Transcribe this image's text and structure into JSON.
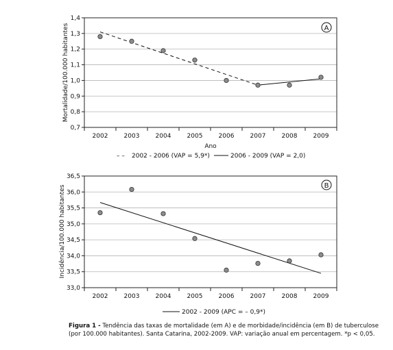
{
  "chart_data": [
    {
      "type": "line",
      "panel_label": "A",
      "ylabel": "Mortalidade/100.000 habitantes",
      "xlabel": "Ano",
      "ylim": [
        0.7,
        1.4
      ],
      "yticks": [
        "0,7",
        "0,8",
        "0,9",
        "1,0",
        "1,1",
        "1,2",
        "1,3",
        "1,4"
      ],
      "yticks_values": [
        0.7,
        0.8,
        0.9,
        1.0,
        1.1,
        1.2,
        1.3,
        1.4
      ],
      "x": [
        "2002",
        "2003",
        "2004",
        "2005",
        "2006",
        "2007",
        "2008",
        "2009"
      ],
      "grid": true,
      "points": [
        1.28,
        1.25,
        1.19,
        1.13,
        1.0,
        0.97,
        0.97,
        1.02
      ],
      "trends": [
        {
          "name": "2002 - 2006 (VAP = 5,9*)",
          "style": "dashed",
          "from": [
            "2002",
            1.31
          ],
          "to": [
            "2007",
            0.97
          ]
        },
        {
          "name": "2006 - 2009 (VAP = 2,0)",
          "style": "solid",
          "from": [
            "2007",
            0.97
          ],
          "to": [
            "2009",
            1.01
          ]
        }
      ],
      "legend_prefix_dashed": "– –",
      "legend": [
        "2002 - 2006 (VAP = 5,9*)",
        "2006 - 2009 (VAP = 2,0)"
      ]
    },
    {
      "type": "line",
      "panel_label": "B",
      "ylabel": "Incidência/100.000 habitantes",
      "xlabel": "",
      "ylim": [
        33.0,
        36.5
      ],
      "yticks": [
        "33,0",
        "33,5",
        "34,0",
        "34,5",
        "35,0",
        "35,5",
        "36,0",
        "36,5"
      ],
      "yticks_values": [
        33.0,
        33.5,
        34.0,
        34.5,
        35.0,
        35.5,
        36.0,
        36.5
      ],
      "x": [
        "2002",
        "2003",
        "2004",
        "2005",
        "2006",
        "2007",
        "2008",
        "2009"
      ],
      "grid": true,
      "points": [
        35.35,
        36.08,
        35.32,
        34.54,
        33.55,
        33.76,
        33.84,
        34.03
      ],
      "trends": [
        {
          "name": "2002 - 2009 (APC = – 0,9*)",
          "style": "solid",
          "from": [
            "2002",
            35.67
          ],
          "to": [
            "2009",
            33.45
          ]
        }
      ],
      "legend": [
        "2002 - 2009 (APC = – 0,9*)"
      ]
    }
  ],
  "caption": {
    "label": "Figura 1 -",
    "text": "Tendência das taxas de mortalidade (em A) e de morbidade/incidência (em B) de tuberculose (por 100.000 habitantes). Santa Catarina, 2002-2009. VAP: variação anual em percentagem. *p < 0,05."
  }
}
